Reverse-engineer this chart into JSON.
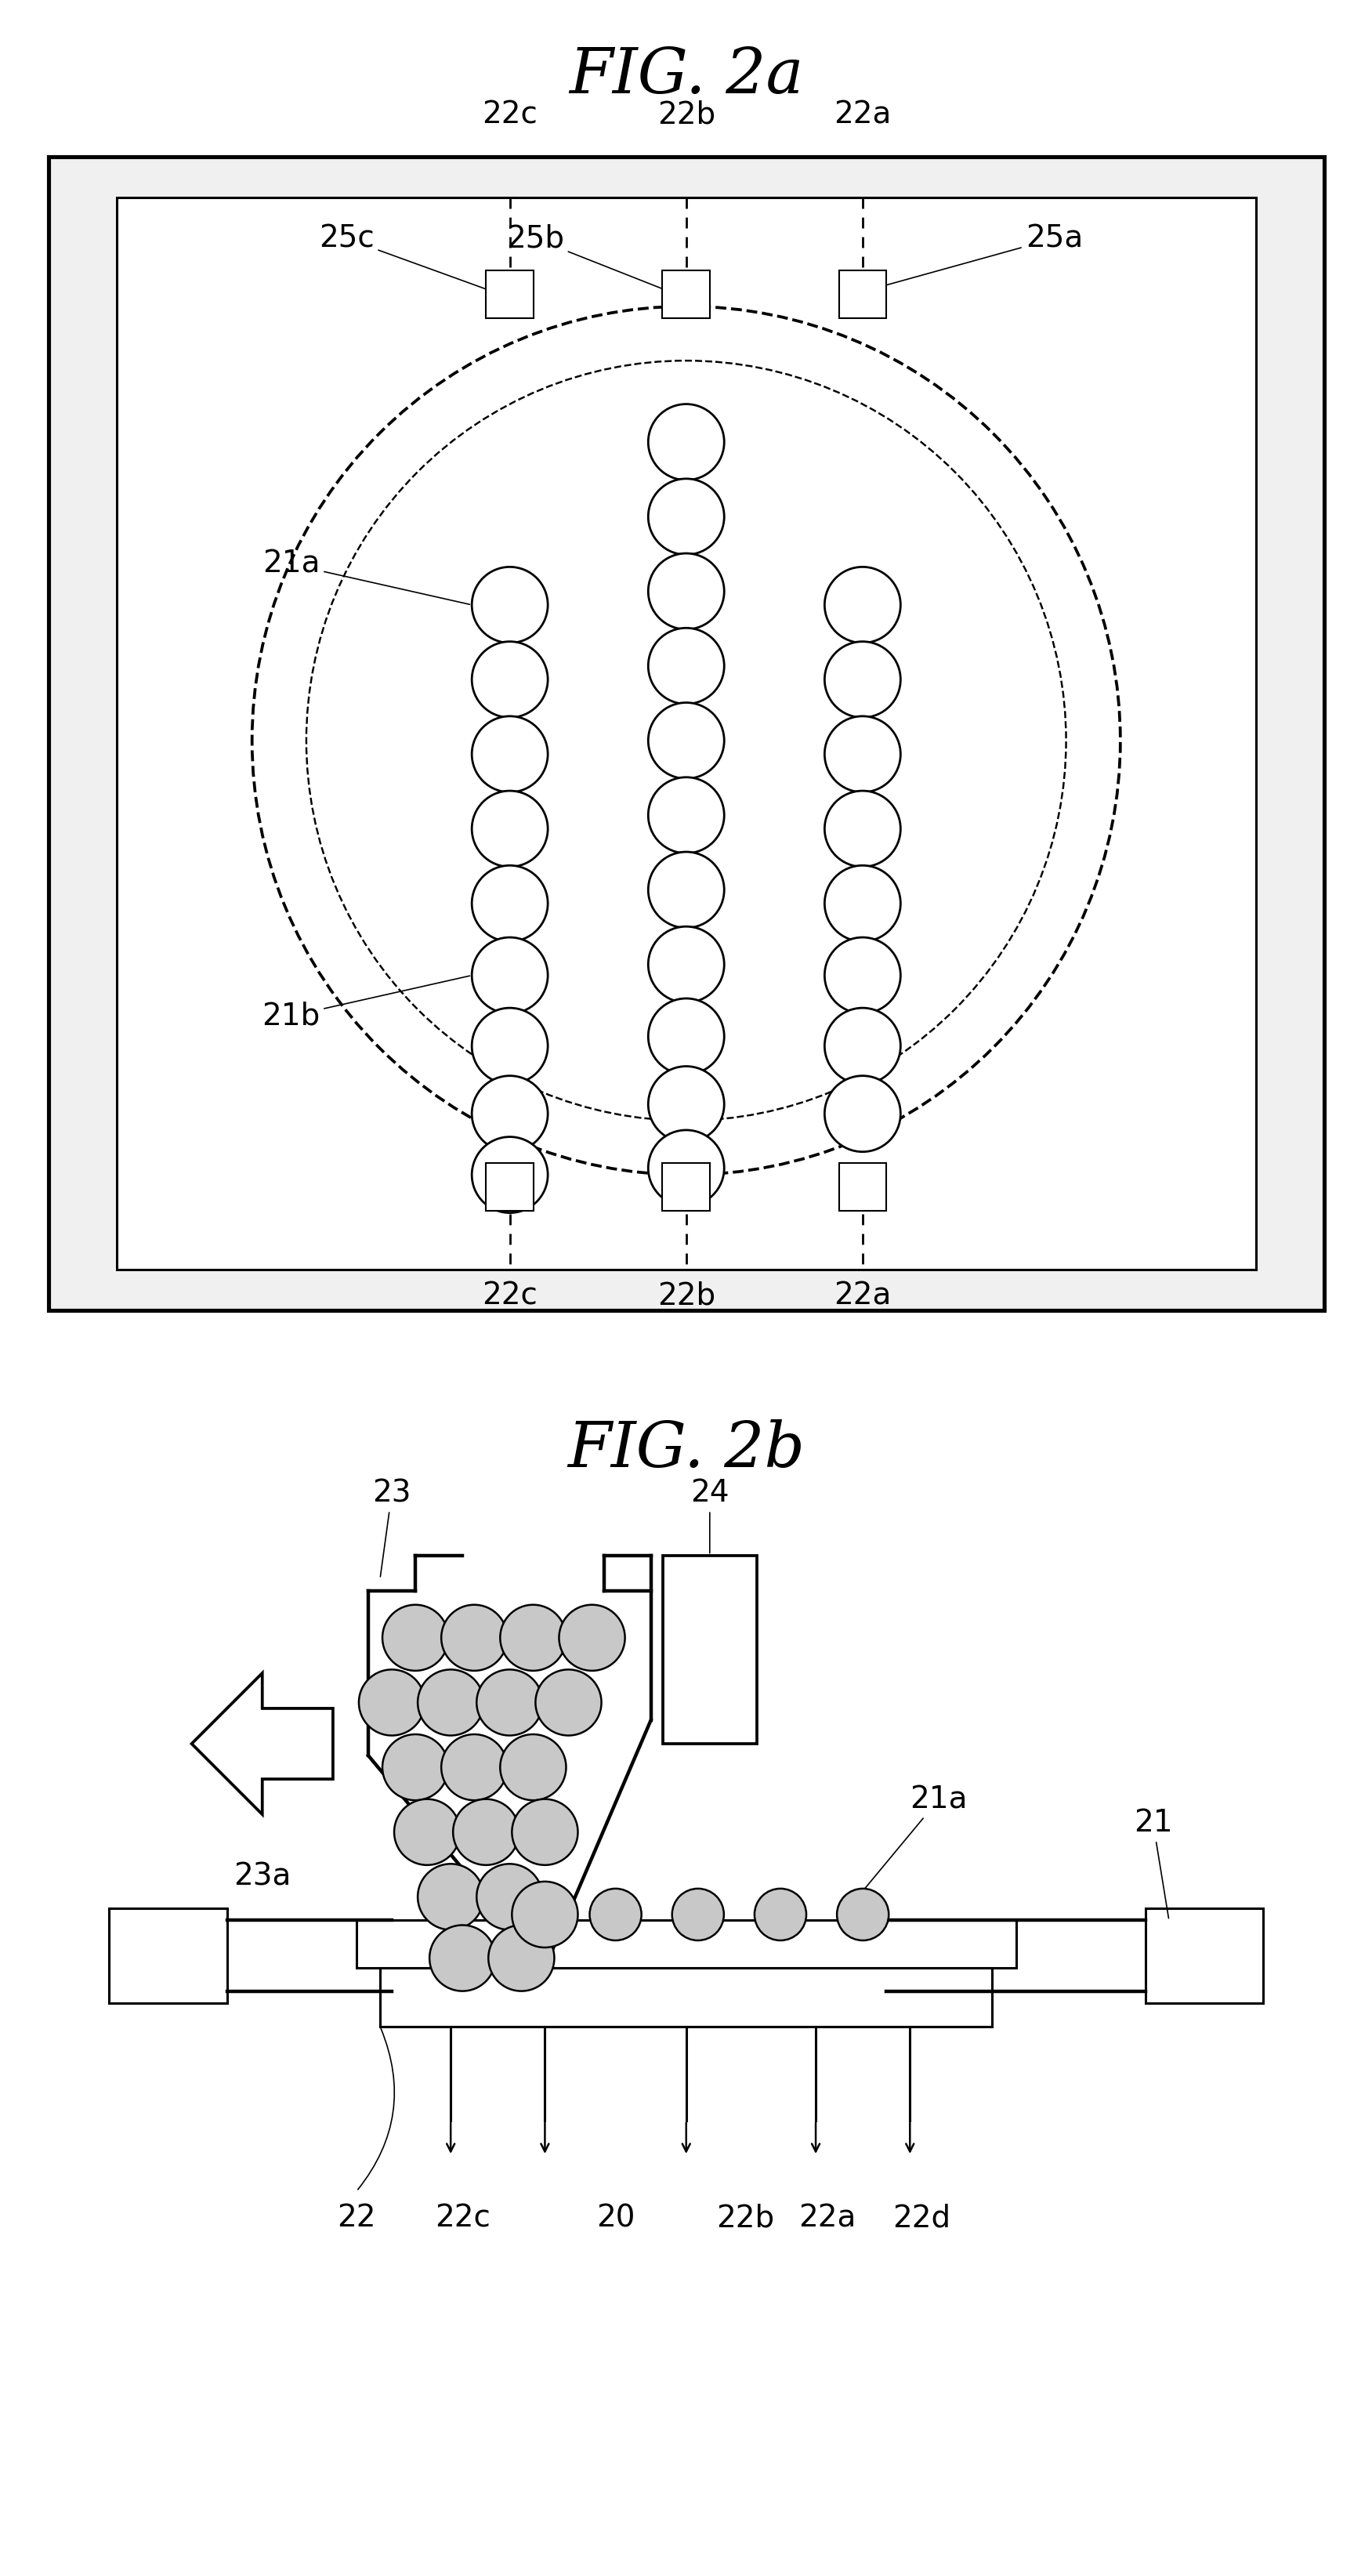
{
  "title_2a": "FIG. 2a",
  "title_2b": "FIG. 2b",
  "bg_color": "#ffffff",
  "line_color": "#000000",
  "fig_width": 21.22,
  "fig_height": 32.67,
  "lw": 2.2,
  "fs_title": 58,
  "fs_label": 28
}
